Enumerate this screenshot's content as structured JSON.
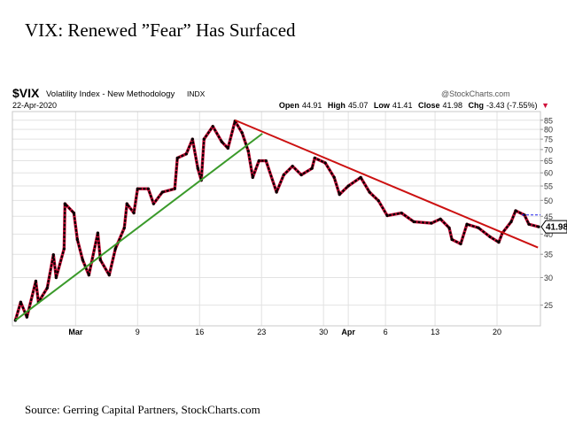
{
  "title": "VIX: Renewed ”Fear” Has Surfaced",
  "source": "Source: Gerring Capital Partners, StockCharts.com",
  "chart_header": {
    "symbol": "$VIX",
    "name": "Volatility Index - New Methodology",
    "exchange": "INDX",
    "date": "22-Apr-2020",
    "watermark": "@StockCharts.com",
    "open_label": "Open",
    "open": "44.91",
    "high_label": "High",
    "high": "45.07",
    "low_label": "Low",
    "low": "41.41",
    "close_label": "Close",
    "close": "41.98",
    "chg_label": "Chg",
    "chg": "-3.43 (-7.55%)",
    "down_arrow": "▼"
  },
  "colors": {
    "price": "#000000",
    "price_down": "#d0103a",
    "uptrend": "#3a9a2a",
    "downtrend": "#cc1111",
    "prev_close": "#2222ee",
    "grid": "#e2e2e2"
  },
  "chart_data": {
    "type": "line",
    "scale": "log",
    "xlabel": "",
    "ylabel": "",
    "x_unit": "trading days from 2-Mar-2020",
    "xlim": [
      -5.1,
      37.5
    ],
    "ylim": [
      21.8,
      90
    ],
    "yticks": [
      25,
      30,
      35,
      40,
      45,
      50,
      55,
      60,
      65,
      70,
      75,
      80,
      85
    ],
    "xticks": [
      {
        "x": 0,
        "label": "Mar",
        "bold": true
      },
      {
        "x": 5,
        "label": "9"
      },
      {
        "x": 10,
        "label": "16"
      },
      {
        "x": 15,
        "label": "23"
      },
      {
        "x": 20,
        "label": "30"
      },
      {
        "x": 22,
        "label": "Apr",
        "bold": true
      },
      {
        "x": 25,
        "label": "6"
      },
      {
        "x": 29,
        "label": "13"
      },
      {
        "x": 34,
        "label": "20"
      }
    ],
    "grid": true,
    "series": [
      {
        "name": "$VIX",
        "points": [
          [
            -4.86,
            22.6
          ],
          [
            -4.43,
            25.5
          ],
          [
            -3.93,
            23.1
          ],
          [
            -3.21,
            29.3
          ],
          [
            -3.0,
            25.5
          ],
          [
            -2.29,
            28.0
          ],
          [
            -1.79,
            34.9
          ],
          [
            -1.57,
            30.0
          ],
          [
            -0.93,
            36.3
          ],
          [
            -0.86,
            48.9
          ],
          [
            -0.14,
            46.0
          ],
          [
            0.14,
            38.6
          ],
          [
            0.57,
            33.7
          ],
          [
            1.07,
            30.5
          ],
          [
            1.79,
            40.3
          ],
          [
            2.0,
            33.7
          ],
          [
            2.71,
            30.5
          ],
          [
            3.21,
            36.3
          ],
          [
            3.93,
            41.7
          ],
          [
            4.14,
            48.9
          ],
          [
            4.7,
            46.0
          ],
          [
            5.0,
            54.0
          ],
          [
            5.86,
            54.0
          ],
          [
            6.29,
            48.9
          ],
          [
            7.0,
            52.8
          ],
          [
            8.0,
            54.0
          ],
          [
            8.21,
            66.2
          ],
          [
            8.93,
            68.0
          ],
          [
            9.43,
            75.0
          ],
          [
            9.86,
            61.8
          ],
          [
            10.14,
            57.1
          ],
          [
            10.36,
            75.0
          ],
          [
            11.07,
            81.6
          ],
          [
            11.79,
            73.7
          ],
          [
            12.29,
            70.6
          ],
          [
            12.86,
            84.5
          ],
          [
            13.43,
            78.2
          ],
          [
            13.93,
            69.3
          ],
          [
            14.29,
            58.2
          ],
          [
            14.79,
            65.0
          ],
          [
            15.36,
            65.0
          ],
          [
            16.21,
            52.8
          ],
          [
            16.79,
            59.2
          ],
          [
            17.5,
            62.7
          ],
          [
            18.21,
            59.2
          ],
          [
            19.07,
            61.8
          ],
          [
            19.29,
            66.2
          ],
          [
            20.14,
            64.1
          ],
          [
            20.86,
            58.2
          ],
          [
            21.29,
            52.0
          ],
          [
            22.0,
            55.0
          ],
          [
            23.0,
            58.2
          ],
          [
            23.71,
            52.8
          ],
          [
            24.43,
            49.9
          ],
          [
            25.14,
            45.2
          ],
          [
            26.29,
            46.0
          ],
          [
            27.29,
            43.4
          ],
          [
            28.71,
            43.0
          ],
          [
            29.43,
            44.2
          ],
          [
            30.14,
            41.7
          ],
          [
            30.36,
            38.6
          ],
          [
            31.07,
            37.5
          ],
          [
            31.57,
            42.7
          ],
          [
            32.5,
            41.7
          ],
          [
            33.43,
            39.3
          ],
          [
            34.14,
            37.9
          ],
          [
            34.43,
            40.3
          ],
          [
            35.14,
            43.4
          ],
          [
            35.5,
            46.7
          ],
          [
            36.21,
            45.4
          ],
          [
            36.57,
            42.7
          ],
          [
            37.36,
            41.98
          ]
        ]
      }
    ],
    "trendlines": [
      {
        "name": "uptrend",
        "from": [
          -4.86,
          22.6
        ],
        "to": [
          15.07,
          77.8
        ]
      },
      {
        "name": "downtrend",
        "from": [
          12.86,
          85.0
        ],
        "to": [
          37.3,
          36.6
        ]
      }
    ],
    "prev_close": 45.41,
    "last_value_label": "41.98"
  }
}
